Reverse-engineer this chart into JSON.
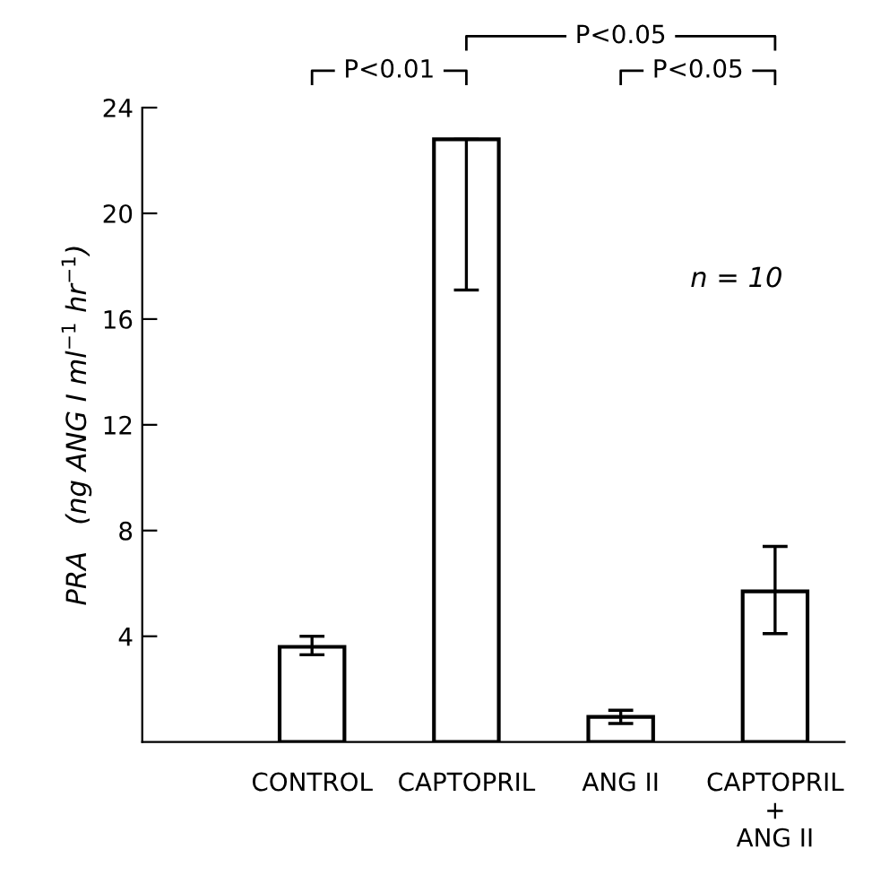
{
  "chart_data": {
    "type": "bar",
    "categories": [
      "CONTROL",
      "CAPTOPRIL",
      "ANG II",
      "CAPTOPRIL\n+\nANG II"
    ],
    "values": [
      3.6,
      22.8,
      0.95,
      5.7
    ],
    "errors": [
      [
        3.3,
        4.0
      ],
      [
        17.1,
        22.8
      ],
      [
        0.7,
        1.2
      ],
      [
        4.1,
        7.4
      ]
    ],
    "color": "#ffffff",
    "ylabel": "PRA   (ng ANG I ml$^{−1}$ hr$^{−1}$)",
    "ylim": [
      0,
      24
    ],
    "yticks": [
      4,
      8,
      12,
      16,
      20,
      24
    ],
    "annotations": [
      "P<0.01",
      "P<0.05",
      "P<0.05",
      "n = 10"
    ],
    "grid": false,
    "legend": false
  }
}
